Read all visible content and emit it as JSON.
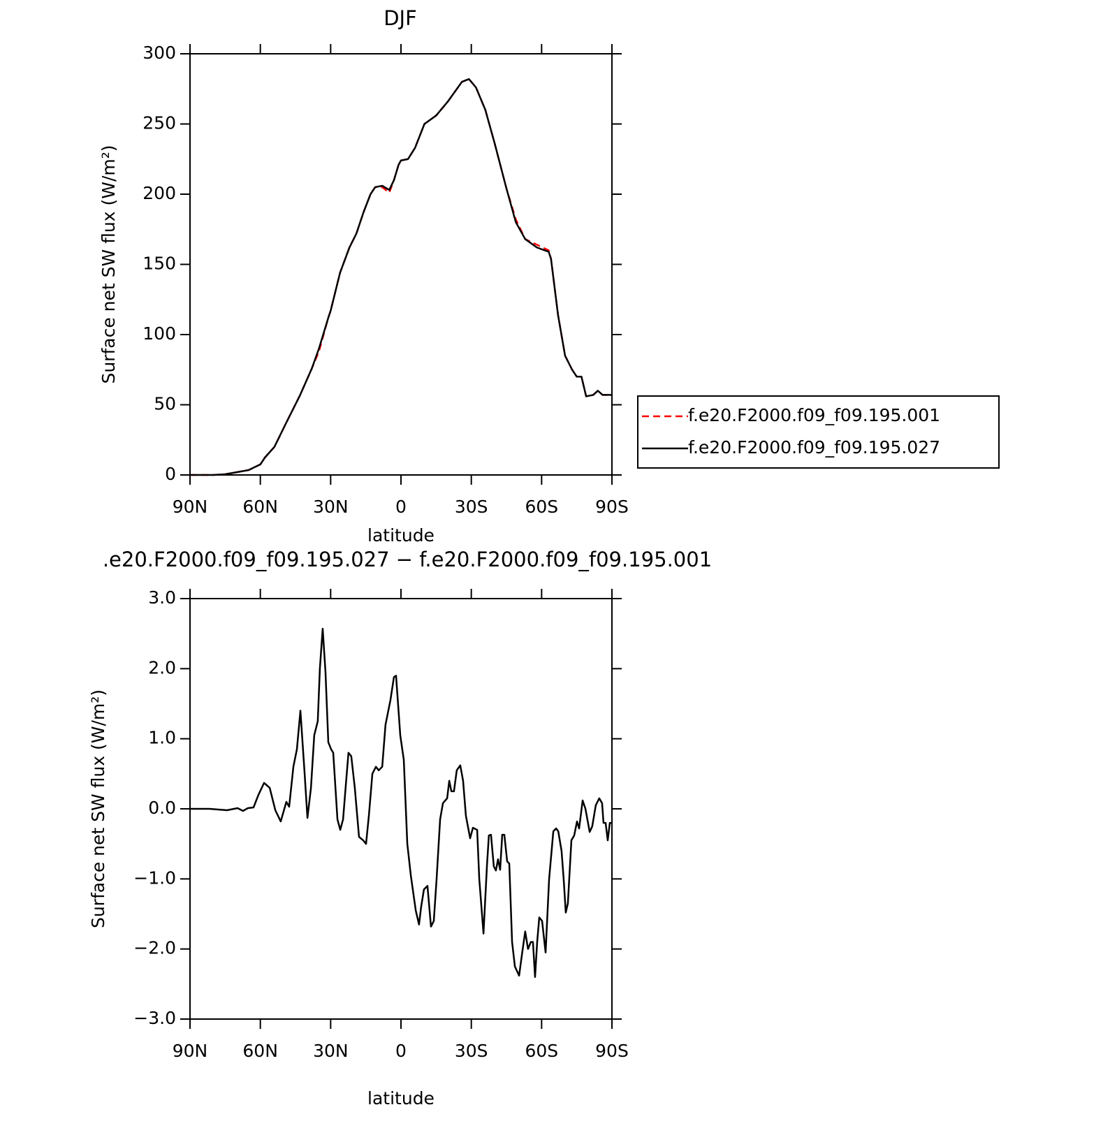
{
  "chart_data": [
    {
      "type": "line",
      "title": "DJF",
      "xlabel": "latitude",
      "ylabel": "Surface net SW flux (W/m²)",
      "xlim": [
        90,
        -90
      ],
      "ylim": [
        0,
        300
      ],
      "xticks": [
        {
          "value": 90,
          "label": "90N"
        },
        {
          "value": 60,
          "label": "60N"
        },
        {
          "value": 30,
          "label": "30N"
        },
        0,
        {
          "value": -30,
          "label": "30S"
        },
        {
          "value": -60,
          "label": "60S"
        },
        {
          "value": -90,
          "label": "90S"
        }
      ],
      "yticks": [
        0,
        50,
        100,
        150,
        200,
        250,
        300
      ],
      "legend": "right",
      "x": [
        90,
        80,
        75,
        70,
        65,
        60,
        58,
        54,
        49,
        43,
        38,
        35,
        31,
        30,
        26,
        22,
        19,
        16,
        13,
        11,
        8,
        5,
        3,
        1,
        0,
        -3,
        -6,
        -10,
        -15,
        -20,
        -26,
        -29,
        -32,
        -36,
        -40,
        -45,
        -49,
        -53,
        -58,
        -63,
        -64,
        -67,
        -70,
        -73,
        -75,
        -77,
        -79,
        -82,
        -84,
        -86,
        -90
      ],
      "series": [
        {
          "name": "f.e20.F2000.f09_f09.195.001",
          "color": "#ff0000",
          "dash": true,
          "values": [
            0,
            0,
            0.5,
            2,
            3.5,
            7.5,
            12.5,
            20,
            37,
            57,
            76,
            88,
            112,
            117,
            144,
            162,
            172,
            187,
            200,
            205,
            205,
            201,
            210,
            221,
            224,
            225,
            233,
            250,
            256,
            266,
            280,
            282,
            276,
            260,
            236,
            204,
            182,
            168,
            164,
            160,
            154,
            114,
            85,
            75,
            70,
            70,
            56,
            57,
            60,
            57,
            57
          ]
        },
        {
          "name": "f.e20.F2000.f09_f09.195.027",
          "color": "#000000",
          "dash": false,
          "values": [
            0,
            0,
            0.5,
            2,
            3.5,
            7.5,
            12.5,
            20,
            37,
            57,
            76,
            90,
            112,
            117,
            144,
            162,
            172,
            187,
            200,
            205,
            206,
            203,
            210,
            221,
            224,
            225,
            233,
            250,
            256,
            266,
            280,
            282,
            276,
            260,
            236,
            204,
            180,
            168,
            162,
            159,
            154,
            114,
            85,
            75,
            70,
            70,
            56,
            57,
            60,
            57,
            57
          ]
        }
      ]
    },
    {
      "type": "line",
      "title": ".e20.F2000.f09_f09.195.027 − f.e20.F2000.f09_f09.195.001",
      "xlabel": "latitude",
      "ylabel": "Surface net SW flux (W/m²)",
      "xlim": [
        90,
        -90
      ],
      "ylim": [
        -3,
        3
      ],
      "xticks": [
        {
          "value": 90,
          "label": "90N"
        },
        {
          "value": 60,
          "label": "60N"
        },
        {
          "value": 30,
          "label": "30N"
        },
        0,
        {
          "value": -30,
          "label": "30S"
        },
        {
          "value": -60,
          "label": "60S"
        },
        {
          "value": -90,
          "label": "90S"
        }
      ],
      "yticks": [
        {
          "value": 3,
          "label": "3.0"
        },
        {
          "value": 2,
          "label": "2.0"
        },
        {
          "value": 1,
          "label": "1.0"
        },
        {
          "value": 0,
          "label": "0.0"
        },
        {
          "value": -1,
          "label": "−1.0"
        },
        {
          "value": -2,
          "label": "−2.0"
        },
        {
          "value": -3,
          "label": "−3.0"
        }
      ],
      "color": "#000000",
      "x": [
        90,
        81.7,
        74.2,
        69.7,
        67.4,
        65.3,
        62.9,
        60.8,
        58.4,
        56.0,
        53.6,
        51.3,
        48.9,
        47.7,
        45.9,
        44.4,
        42.9,
        41.1,
        39.9,
        38.4,
        37.0,
        35.5,
        34.6,
        33.4,
        32.2,
        31.0,
        29.8,
        28.9,
        27.1,
        25.9,
        24.7,
        23.5,
        22.4,
        21.2,
        19.7,
        17.9,
        16.1,
        14.9,
        13.7,
        12.2,
        10.7,
        9.5,
        8.0,
        6.6,
        4.5,
        3.0,
        2.1,
        0.3,
        -1.2,
        -2.7,
        -4.2,
        -6.3,
        -7.7,
        -8.6,
        -9.8,
        -11.3,
        -12.8,
        -14.0,
        -15.2,
        -16.7,
        -17.9,
        -19.7,
        -20.6,
        -21.5,
        -22.6,
        -23.8,
        -25.3,
        -26.5,
        -27.7,
        -29.5,
        -30.7,
        -32.5,
        -33.4,
        -35.2,
        -36.7,
        -37.5,
        -38.4,
        -39.6,
        -40.5,
        -41.4,
        -42.3,
        -43.2,
        -44.1,
        -45.3,
        -46.2,
        -47.4,
        -48.6,
        -50.4,
        -51.6,
        -53.0,
        -54.2,
        -55.4,
        -56.3,
        -57.2,
        -58.1,
        -59.0,
        -60.2,
        -61.7,
        -63.2,
        -65.0,
        -66.2,
        -67.1,
        -68.5,
        -69.4,
        -70.3,
        -71.2,
        -72.7,
        -73.9,
        -75.1,
        -76.0,
        -77.5,
        -78.7,
        -80.5,
        -81.6,
        -83.1,
        -84.6,
        -85.8,
        -86.4,
        -87.3,
        -88.2,
        -89.1,
        -90
      ],
      "values": [
        0,
        0,
        -0.02,
        0.01,
        -0.03,
        0.01,
        0.02,
        0.2,
        0.37,
        0.3,
        -0.02,
        -0.18,
        0.1,
        0.03,
        0.6,
        0.85,
        1.4,
        0.5,
        -0.13,
        0.3,
        1.05,
        1.25,
        2.0,
        2.57,
        1.95,
        0.95,
        0.85,
        0.8,
        -0.15,
        -0.3,
        -0.15,
        0.35,
        0.8,
        0.75,
        0.3,
        -0.4,
        -0.45,
        -0.5,
        -0.1,
        0.5,
        0.6,
        0.55,
        0.6,
        1.2,
        1.55,
        1.88,
        1.9,
        1.05,
        0.7,
        -0.5,
        -0.95,
        -1.45,
        -1.65,
        -1.4,
        -1.15,
        -1.1,
        -1.68,
        -1.6,
        -1.0,
        -0.15,
        0.08,
        0.15,
        0.4,
        0.25,
        0.25,
        0.55,
        0.62,
        0.4,
        -0.1,
        -0.42,
        -0.27,
        -0.3,
        -1.0,
        -1.78,
        -0.8,
        -0.38,
        -0.37,
        -0.82,
        -0.88,
        -0.72,
        -0.87,
        -0.37,
        -0.37,
        -0.75,
        -0.78,
        -1.9,
        -2.25,
        -2.38,
        -2.08,
        -1.75,
        -2.0,
        -1.9,
        -1.9,
        -2.4,
        -1.9,
        -1.55,
        -1.6,
        -2.05,
        -1.0,
        -0.32,
        -0.28,
        -0.32,
        -0.6,
        -1.0,
        -1.48,
        -1.35,
        -0.45,
        -0.38,
        -0.18,
        -0.28,
        0.12,
        0.0,
        -0.33,
        -0.25,
        0.05,
        0.15,
        0.08,
        -0.2,
        -0.2,
        -0.45,
        -0.2,
        -0.2
      ]
    }
  ]
}
